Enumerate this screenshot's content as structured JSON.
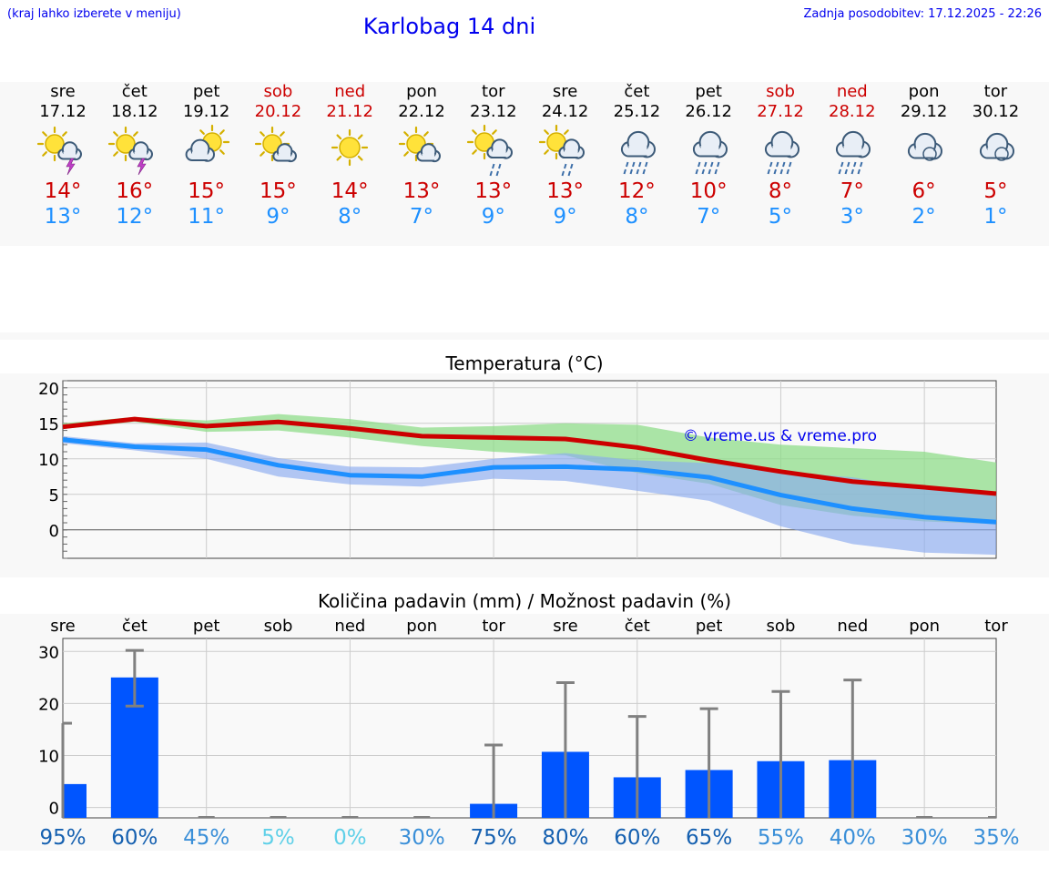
{
  "header": {
    "hint": "(kraj lahko izberete v meniju)",
    "title": "Karlobag 14 dni",
    "updated": "Zadnja posodobitev: 17.12.2025 - 22:26"
  },
  "colors": {
    "max": "#cc0000",
    "min": "#1e90ff",
    "bar": "#0055ff",
    "max_band": "#8fdc8a",
    "min_band": "#8aaaf0",
    "whisker": "#808080"
  },
  "days": [
    {
      "name": "sre",
      "date": "17.12",
      "weekend": false,
      "icon": "sun-cloud-thunder-icon",
      "max": "14°",
      "min": "13°"
    },
    {
      "name": "čet",
      "date": "18.12",
      "weekend": false,
      "icon": "sun-cloud-thunder-icon",
      "max": "16°",
      "min": "12°"
    },
    {
      "name": "pet",
      "date": "19.12",
      "weekend": false,
      "icon": "sun-cloud-icon",
      "max": "15°",
      "min": "11°"
    },
    {
      "name": "sob",
      "date": "20.12",
      "weekend": true,
      "icon": "sun-small-cloud-icon",
      "max": "15°",
      "min": "9°"
    },
    {
      "name": "ned",
      "date": "21.12",
      "weekend": true,
      "icon": "sun-icon",
      "max": "14°",
      "min": "8°"
    },
    {
      "name": "pon",
      "date": "22.12",
      "weekend": false,
      "icon": "sun-small-cloud-icon",
      "max": "13°",
      "min": "7°"
    },
    {
      "name": "tor",
      "date": "23.12",
      "weekend": false,
      "icon": "sun-cloud-rain-icon",
      "max": "13°",
      "min": "9°"
    },
    {
      "name": "sre",
      "date": "24.12",
      "weekend": false,
      "icon": "sun-cloud-rain-icon",
      "max": "13°",
      "min": "9°"
    },
    {
      "name": "čet",
      "date": "25.12",
      "weekend": false,
      "icon": "cloud-rain-icon",
      "max": "12°",
      "min": "8°"
    },
    {
      "name": "pet",
      "date": "26.12",
      "weekend": false,
      "icon": "cloud-rain-icon",
      "max": "10°",
      "min": "7°"
    },
    {
      "name": "sob",
      "date": "27.12",
      "weekend": true,
      "icon": "cloud-rain-icon",
      "max": "8°",
      "min": "5°"
    },
    {
      "name": "ned",
      "date": "28.12",
      "weekend": true,
      "icon": "cloud-rain-icon",
      "max": "7°",
      "min": "3°"
    },
    {
      "name": "pon",
      "date": "29.12",
      "weekend": false,
      "icon": "cloud-icon",
      "max": "6°",
      "min": "2°"
    },
    {
      "name": "tor",
      "date": "30.12",
      "weekend": false,
      "icon": "cloud-icon",
      "max": "5°",
      "min": "1°"
    }
  ],
  "chart_data": [
    {
      "type": "line",
      "title": "Temperatura (°C)",
      "watermark": "© vreme.us & vreme.pro",
      "x": [
        0,
        1,
        2,
        3,
        4,
        5,
        6,
        7,
        8,
        9,
        10,
        11,
        12,
        13
      ],
      "ylim": [
        -4,
        21
      ],
      "yticks": [
        0,
        5,
        10,
        15,
        20
      ],
      "ytick_labels": [
        "0",
        "5",
        "10",
        "15",
        "20"
      ],
      "series": [
        {
          "name": "max",
          "values": [
            14.5,
            15.6,
            14.6,
            15.2,
            14.3,
            13.2,
            13.0,
            12.8,
            11.6,
            9.8,
            8.2,
            6.8,
            6.0,
            5.1
          ],
          "band_low": [
            14.2,
            15.2,
            13.8,
            14.0,
            13.0,
            11.8,
            11.0,
            10.5,
            8.0,
            6.5,
            3.5,
            2.0,
            1.2,
            0.8
          ],
          "band_high": [
            15.0,
            15.9,
            15.4,
            16.3,
            15.6,
            14.4,
            14.6,
            15.0,
            14.8,
            13.0,
            12.0,
            11.5,
            11.0,
            9.5
          ]
        },
        {
          "name": "min",
          "values": [
            12.7,
            11.7,
            11.3,
            9.1,
            7.7,
            7.5,
            8.8,
            8.9,
            8.5,
            7.4,
            4.9,
            3.0,
            1.8,
            1.1
          ],
          "band_low": [
            12.2,
            11.2,
            10.0,
            7.5,
            6.4,
            6.1,
            7.2,
            6.9,
            5.5,
            4.1,
            0.5,
            -2.0,
            -3.2,
            -3.5
          ],
          "band_high": [
            13.2,
            12.2,
            12.3,
            10.1,
            8.9,
            8.8,
            10.0,
            10.8,
            9.8,
            9.4,
            8.2,
            7.4,
            5.8,
            4.8
          ]
        }
      ]
    },
    {
      "type": "bar",
      "title": "Količina padavin (mm) / Možnost padavin (%)",
      "categories": [
        "sre",
        "čet",
        "pet",
        "sob",
        "ned",
        "pon",
        "tor",
        "sre",
        "čet",
        "pet",
        "sob",
        "ned",
        "pon",
        "tor"
      ],
      "values": [
        4.5,
        25,
        0,
        0,
        0,
        0,
        0.7,
        10.7,
        5.8,
        7.2,
        8.9,
        9.1,
        0,
        0
      ],
      "err_high": [
        16.2,
        30.2,
        0,
        0,
        0,
        0,
        12.0,
        24.0,
        17.5,
        19.0,
        22.3,
        24.5,
        0,
        0
      ],
      "err_low": [
        0,
        19.5,
        0,
        0,
        0,
        0,
        0,
        0,
        0,
        0,
        0,
        0,
        0,
        0
      ],
      "ylim": [
        -2,
        32.5
      ],
      "yticks": [
        0,
        10,
        20,
        30
      ],
      "ytick_labels": [
        "0",
        "10",
        "20",
        "30"
      ],
      "probability": [
        "95%",
        "60%",
        "45%",
        "5%",
        "0%",
        "30%",
        "75%",
        "80%",
        "60%",
        "65%",
        "55%",
        "40%",
        "30%",
        "35%"
      ]
    }
  ]
}
